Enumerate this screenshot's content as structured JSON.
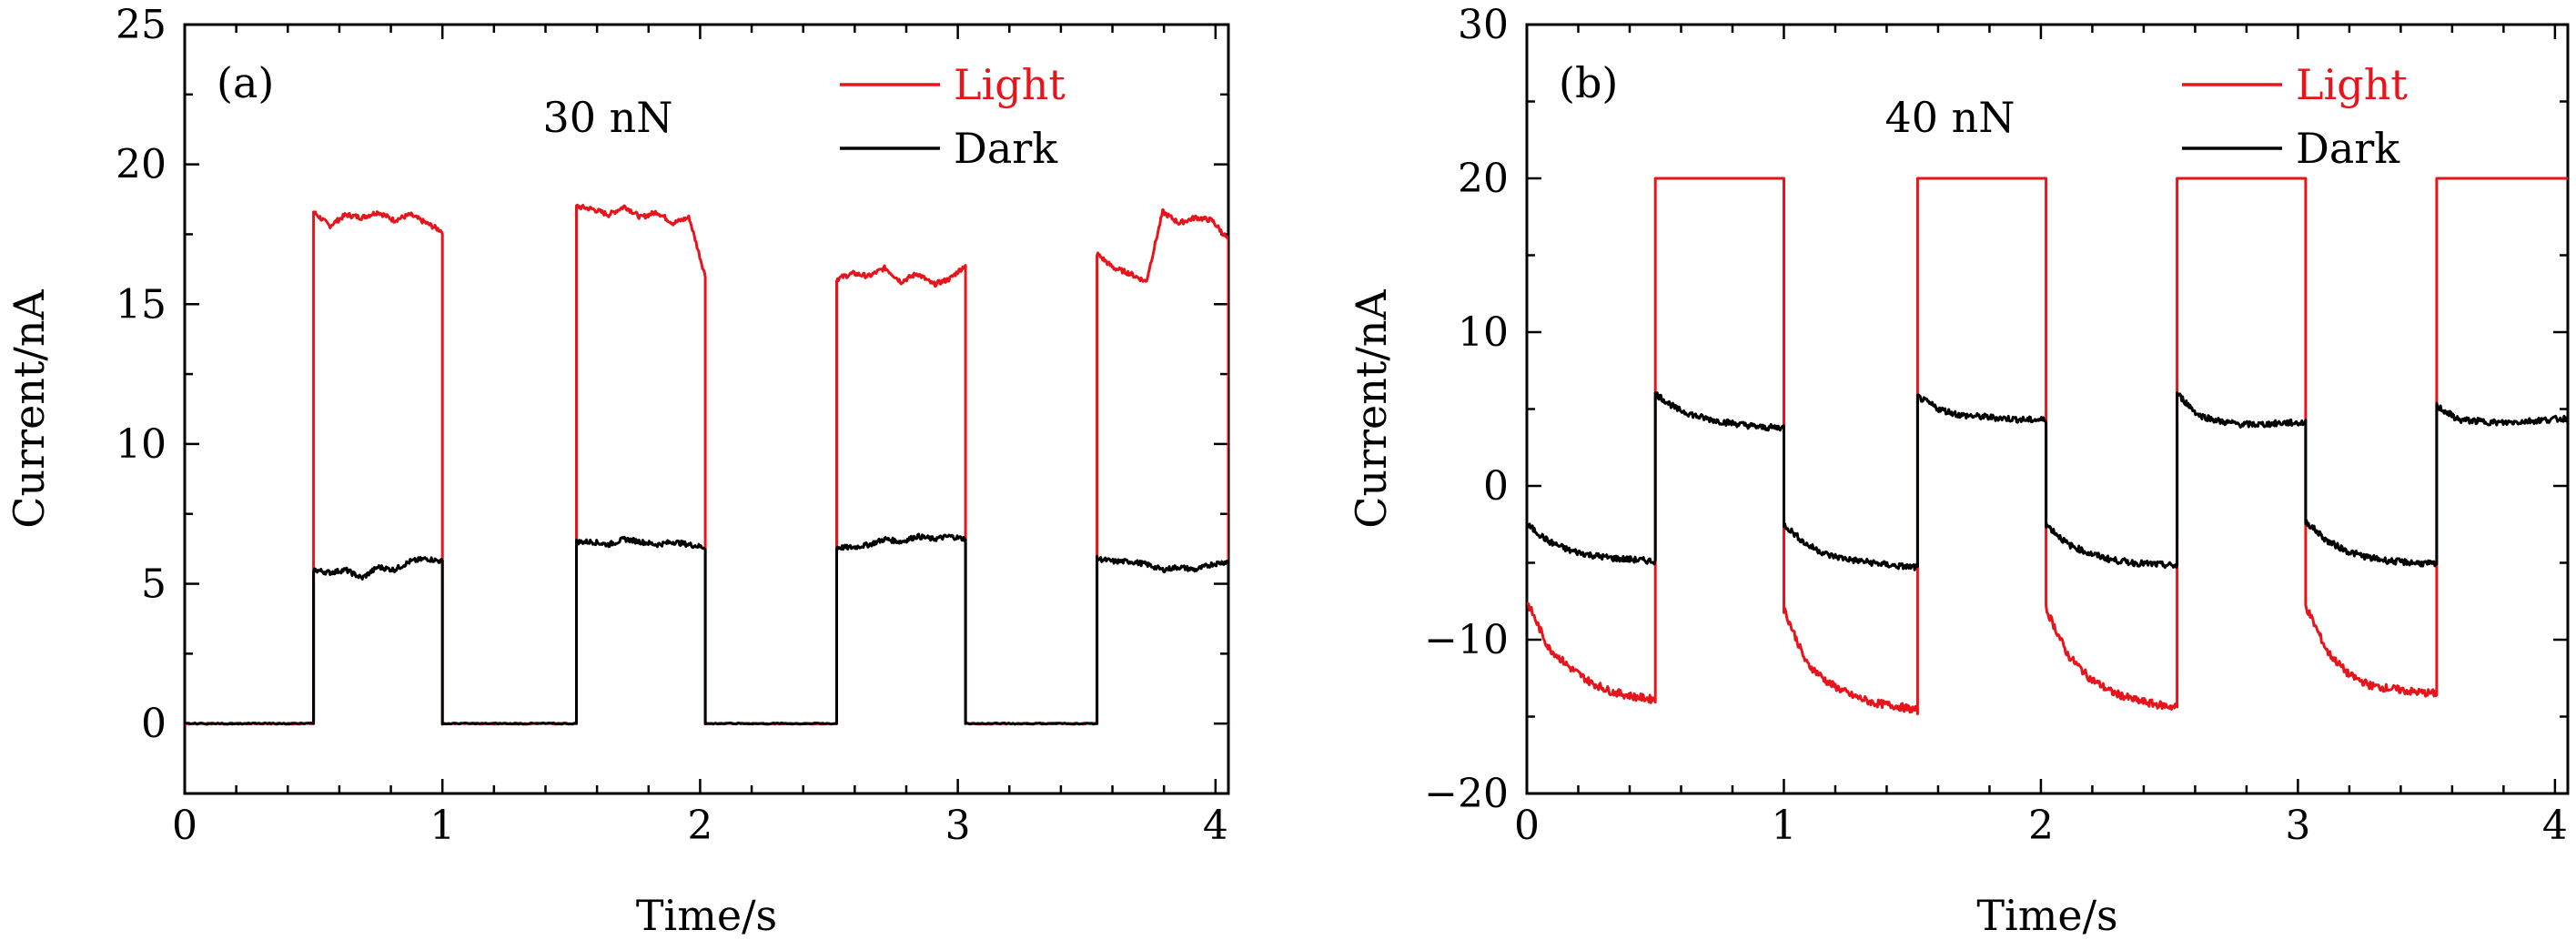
{
  "chart_data": [
    {
      "type": "line",
      "panel_label": "(a)",
      "annotation": "30 nN",
      "xlabel": "Time/s",
      "ylabel": "Current/nA",
      "xlim": [
        0,
        4.05
      ],
      "ylim": [
        -2.5,
        25
      ],
      "xticks": [
        0,
        1,
        2,
        3,
        4
      ],
      "yticks": [
        0,
        5,
        10,
        15,
        20,
        25
      ],
      "minor_y_step": 2.5,
      "legend_position": "top-right",
      "colors": {
        "light": "#e8141b",
        "dark": "#000000"
      },
      "series": [
        {
          "name": "Light",
          "color": "#e8141b",
          "low": 0,
          "segments": [
            {
              "start": 0.5,
              "end": 1.0,
              "values": [
                18.3,
                17.8,
                18.2,
                18.1,
                18.3,
                18.0,
                18.2,
                17.9,
                17.6
              ]
            },
            {
              "start": 1.52,
              "end": 2.02,
              "values": [
                18.5,
                18.4,
                18.2,
                18.5,
                18.1,
                18.3,
                17.9,
                18.1,
                16.0
              ]
            },
            {
              "start": 2.53,
              "end": 3.03,
              "values": [
                15.9,
                16.1,
                16.0,
                16.3,
                15.8,
                16.1,
                15.7,
                15.9,
                16.4
              ]
            },
            {
              "start": 3.54,
              "end": 4.05,
              "values": [
                16.8,
                16.3,
                16.1,
                15.8,
                18.3,
                17.9,
                18.1,
                18.0,
                17.3
              ]
            }
          ]
        },
        {
          "name": "Dark",
          "color": "#000000",
          "low": 0,
          "segments": [
            {
              "start": 0.5,
              "end": 1.0,
              "values": [
                5.5,
                5.4,
                5.5,
                5.2,
                5.6,
                5.5,
                5.8,
                5.9,
                5.8
              ]
            },
            {
              "start": 1.52,
              "end": 2.02,
              "values": [
                6.5,
                6.5,
                6.4,
                6.6,
                6.5,
                6.4,
                6.5,
                6.4,
                6.3
              ]
            },
            {
              "start": 2.53,
              "end": 3.03,
              "values": [
                6.3,
                6.3,
                6.4,
                6.6,
                6.5,
                6.7,
                6.6,
                6.7,
                6.6
              ]
            },
            {
              "start": 3.54,
              "end": 4.05,
              "values": [
                5.9,
                5.8,
                5.8,
                5.7,
                5.5,
                5.6,
                5.5,
                5.7,
                5.8
              ]
            }
          ]
        }
      ]
    },
    {
      "type": "line",
      "panel_label": "(b)",
      "annotation": "40 nN",
      "xlabel": "Time/s",
      "ylabel": "Current/nA",
      "xlim": [
        0,
        4.05
      ],
      "ylim": [
        -20,
        30
      ],
      "xticks": [
        0,
        1,
        2,
        3,
        4
      ],
      "yticks": [
        -20,
        -10,
        0,
        10,
        20,
        30
      ],
      "ytick_labels": [
        "−20",
        "−10",
        "0",
        "10",
        "20",
        "30"
      ],
      "minor_y_step": 5,
      "legend_position": "top-right",
      "colors": {
        "light": "#e8141b",
        "dark": "#000000"
      },
      "series": [
        {
          "name": "Light",
          "color": "#e8141b",
          "on_value": 20,
          "on_windows": [
            [
              0.5,
              1.0
            ],
            [
              1.52,
              2.02
            ],
            [
              2.53,
              3.03
            ],
            [
              3.54,
              4.05
            ]
          ],
          "off_segments": [
            {
              "start": 0.0,
              "end": 0.5,
              "values": [
                -7.5,
                -10.5,
                -11.8,
                -12.8,
                -13.4,
                -13.7,
                -13.9
              ]
            },
            {
              "start": 1.0,
              "end": 1.52,
              "values": [
                -8.0,
                -11.5,
                -12.8,
                -13.6,
                -14.1,
                -14.3,
                -14.6
              ]
            },
            {
              "start": 2.02,
              "end": 2.53,
              "values": [
                -8.0,
                -11.0,
                -12.5,
                -13.4,
                -13.9,
                -14.2,
                -14.4
              ]
            },
            {
              "start": 3.03,
              "end": 3.54,
              "values": [
                -7.8,
                -10.8,
                -12.3,
                -13.0,
                -13.2,
                -13.4,
                -13.5
              ]
            }
          ]
        },
        {
          "name": "Dark",
          "color": "#000000",
          "segments": [
            {
              "start": 0.0,
              "end": 0.5,
              "values": [
                -2.5,
                -3.6,
                -4.2,
                -4.5,
                -4.7,
                -4.8,
                -4.9
              ]
            },
            {
              "start": 0.5,
              "end": 1.0,
              "values": [
                6.0,
                5.0,
                4.5,
                4.2,
                4.0,
                3.8,
                3.8
              ]
            },
            {
              "start": 1.0,
              "end": 1.52,
              "values": [
                -2.5,
                -3.8,
                -4.5,
                -4.8,
                -5.0,
                -5.2,
                -5.3
              ]
            },
            {
              "start": 1.52,
              "end": 2.02,
              "values": [
                5.8,
                5.0,
                4.6,
                4.5,
                4.4,
                4.3,
                4.3
              ]
            },
            {
              "start": 2.02,
              "end": 2.53,
              "values": [
                -2.5,
                -3.8,
                -4.4,
                -4.8,
                -5.0,
                -5.1,
                -5.2
              ]
            },
            {
              "start": 2.53,
              "end": 3.03,
              "values": [
                6.0,
                4.6,
                4.2,
                4.0,
                4.0,
                4.1,
                4.1
              ]
            },
            {
              "start": 3.03,
              "end": 3.54,
              "values": [
                -2.3,
                -3.6,
                -4.3,
                -4.7,
                -4.9,
                -5.0,
                -5.1
              ]
            },
            {
              "start": 3.54,
              "end": 4.05,
              "values": [
                5.2,
                4.3,
                4.2,
                4.1,
                4.2,
                4.3,
                4.4
              ]
            }
          ]
        }
      ]
    }
  ]
}
